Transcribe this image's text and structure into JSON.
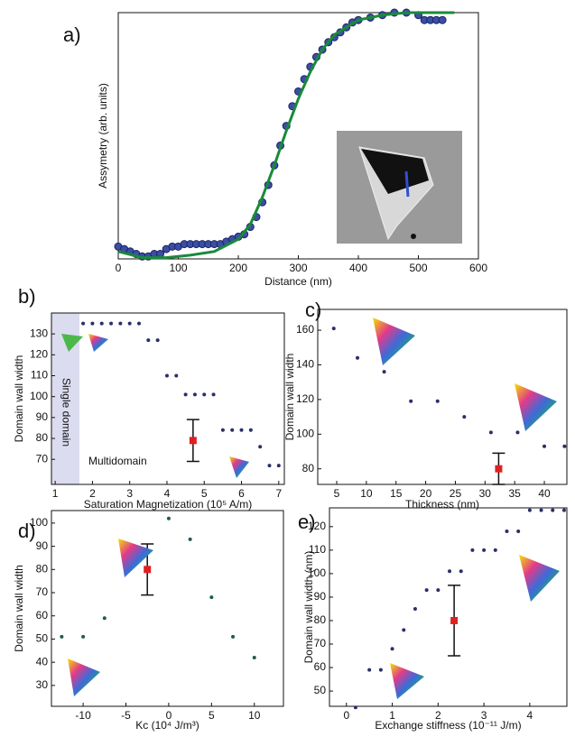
{
  "chart_data": [
    {
      "type": "scatter",
      "label": "a)",
      "x_label": "Distance (nm)",
      "y_label": "Assymetry (arb. units)",
      "xlim": [
        0,
        600
      ],
      "xticks": [
        0,
        100,
        200,
        300,
        400,
        500,
        600
      ],
      "ylim": [
        0,
        100
      ],
      "series": [
        {
          "style": "markers",
          "color": "#3b4ea6",
          "x": [
            0,
            10,
            20,
            30,
            40,
            50,
            60,
            70,
            80,
            90,
            100,
            110,
            120,
            130,
            140,
            150,
            160,
            170,
            180,
            190,
            200,
            210,
            220,
            230,
            240,
            250,
            260,
            270,
            280,
            290,
            300,
            310,
            320,
            330,
            340,
            350,
            360,
            370,
            380,
            390,
            400,
            420,
            440,
            460,
            480,
            500,
            510,
            520,
            530,
            540
          ],
          "values": [
            5,
            4,
            3,
            2,
            1,
            1,
            2,
            2,
            4,
            5,
            5,
            6,
            6,
            6,
            6,
            6,
            6,
            6,
            7,
            8,
            9,
            10,
            13,
            17,
            23,
            30,
            38,
            46,
            54,
            62,
            68,
            73,
            78,
            82,
            85,
            88,
            90,
            92,
            94,
            96,
            97,
            98,
            99,
            100,
            100,
            99,
            97,
            97,
            97,
            97
          ]
        },
        {
          "style": "line",
          "color": "#1a8a3a",
          "x": [
            0,
            40,
            80,
            120,
            160,
            200,
            220,
            240,
            260,
            280,
            300,
            320,
            340,
            360,
            400,
            440,
            480,
            520,
            560
          ],
          "values": [
            3,
            0.5,
            0.5,
            1.5,
            3,
            8,
            14,
            25,
            38,
            52,
            65,
            76,
            85,
            91,
            97,
            99,
            100,
            100,
            100
          ]
        }
      ]
    },
    {
      "type": "scatter",
      "label": "b)",
      "x_label": "Saturation Magnetization (10⁵ A/m)",
      "y_label": "Domain wall width",
      "xlim": [
        0.9,
        7.15
      ],
      "xticks": [
        1,
        2,
        3,
        4,
        5,
        6,
        7
      ],
      "ylim": [
        58,
        140
      ],
      "yticks": [
        70,
        80,
        90,
        100,
        110,
        120,
        130
      ],
      "shaded_xrange": [
        0.9,
        1.65
      ],
      "annotations": [
        "Single domain",
        "Multidomain"
      ],
      "series": [
        {
          "style": "markers",
          "color": "#2a2f6a",
          "x": [
            1.75,
            2.0,
            2.25,
            2.5,
            2.75,
            3.0,
            3.25,
            3.5,
            3.75,
            4.0,
            4.25,
            4.5,
            4.75,
            5.0,
            5.25,
            5.5,
            5.75,
            6.0,
            6.25,
            6.5,
            6.75,
            7.0
          ],
          "values": [
            135,
            135,
            135,
            135,
            135,
            135,
            135,
            127,
            127,
            110,
            110,
            101,
            101,
            101,
            101,
            84,
            84,
            84,
            84,
            76,
            67,
            67
          ]
        },
        {
          "style": "errorbar",
          "color": "#e02020",
          "x": [
            4.7
          ],
          "values": [
            79
          ],
          "errors": [
            10
          ]
        }
      ]
    },
    {
      "type": "scatter",
      "label": "c)",
      "x_label": "Thickness (nm)",
      "y_label": "Domain wall width",
      "xlim": [
        1.8,
        43.8
      ],
      "xticks": [
        5,
        10,
        15,
        20,
        25,
        30,
        35,
        40
      ],
      "ylim": [
        71,
        172
      ],
      "yticks": [
        80,
        100,
        120,
        140,
        160
      ],
      "series": [
        {
          "style": "markers",
          "color": "#2a2f6a",
          "x": [
            4.5,
            8.5,
            13,
            17.5,
            22,
            26.5,
            31,
            35.5,
            40,
            43.4
          ],
          "values": [
            161,
            144,
            136,
            119,
            119,
            110,
            101,
            101,
            93,
            93
          ]
        },
        {
          "style": "errorbar",
          "color": "#e02020",
          "x": [
            32.3
          ],
          "values": [
            80
          ],
          "errors": [
            9
          ]
        }
      ]
    },
    {
      "type": "scatter",
      "label": "d)",
      "x_label": "Kc (10⁴ J/m³)",
      "y_label": "Domain wall width",
      "xlim": [
        -13.7,
        13.4
      ],
      "xticks": [
        -10,
        -5,
        0,
        5,
        10
      ],
      "ylim": [
        21,
        105.4
      ],
      "yticks": [
        30,
        40,
        50,
        60,
        70,
        80,
        90,
        100
      ],
      "series": [
        {
          "style": "markers",
          "color": "#1f5a55",
          "x": [
            -12.5,
            -10,
            -7.5,
            -5,
            0,
            2.5,
            5,
            7.5,
            10
          ],
          "values": [
            51,
            51,
            59,
            85,
            102,
            93,
            68,
            51,
            42
          ]
        },
        {
          "style": "errorbar",
          "color": "#e02020",
          "x": [
            -2.5
          ],
          "values": [
            80
          ],
          "errors": [
            11
          ]
        }
      ]
    },
    {
      "type": "scatter",
      "label": "e)",
      "x_label": "Exchange stiffness (10⁻¹¹ J/m)",
      "y_label": "Domain wall width (nm)",
      "xlim": [
        -0.37,
        4.81
      ],
      "xticks": [
        0,
        1,
        2,
        3,
        4
      ],
      "ylim": [
        43.5,
        128
      ],
      "yticks": [
        50,
        60,
        70,
        80,
        90,
        100,
        110,
        120
      ],
      "series": [
        {
          "style": "markers",
          "color": "#2a2f6a",
          "x": [
            0.2,
            0.5,
            0.75,
            1.0,
            1.25,
            1.5,
            1.75,
            2.0,
            2.25,
            2.5,
            2.75,
            3.0,
            3.25,
            3.5,
            3.75,
            4.0,
            4.25,
            4.5,
            4.75
          ],
          "values": [
            43,
            59,
            59,
            68,
            76,
            85,
            93,
            93,
            101,
            101,
            110,
            110,
            110,
            118,
            118,
            127,
            127,
            127,
            127
          ]
        },
        {
          "style": "errorbar",
          "color": "#e02020",
          "x": [
            2.35
          ],
          "values": [
            80
          ],
          "errors": [
            15
          ]
        }
      ]
    }
  ]
}
